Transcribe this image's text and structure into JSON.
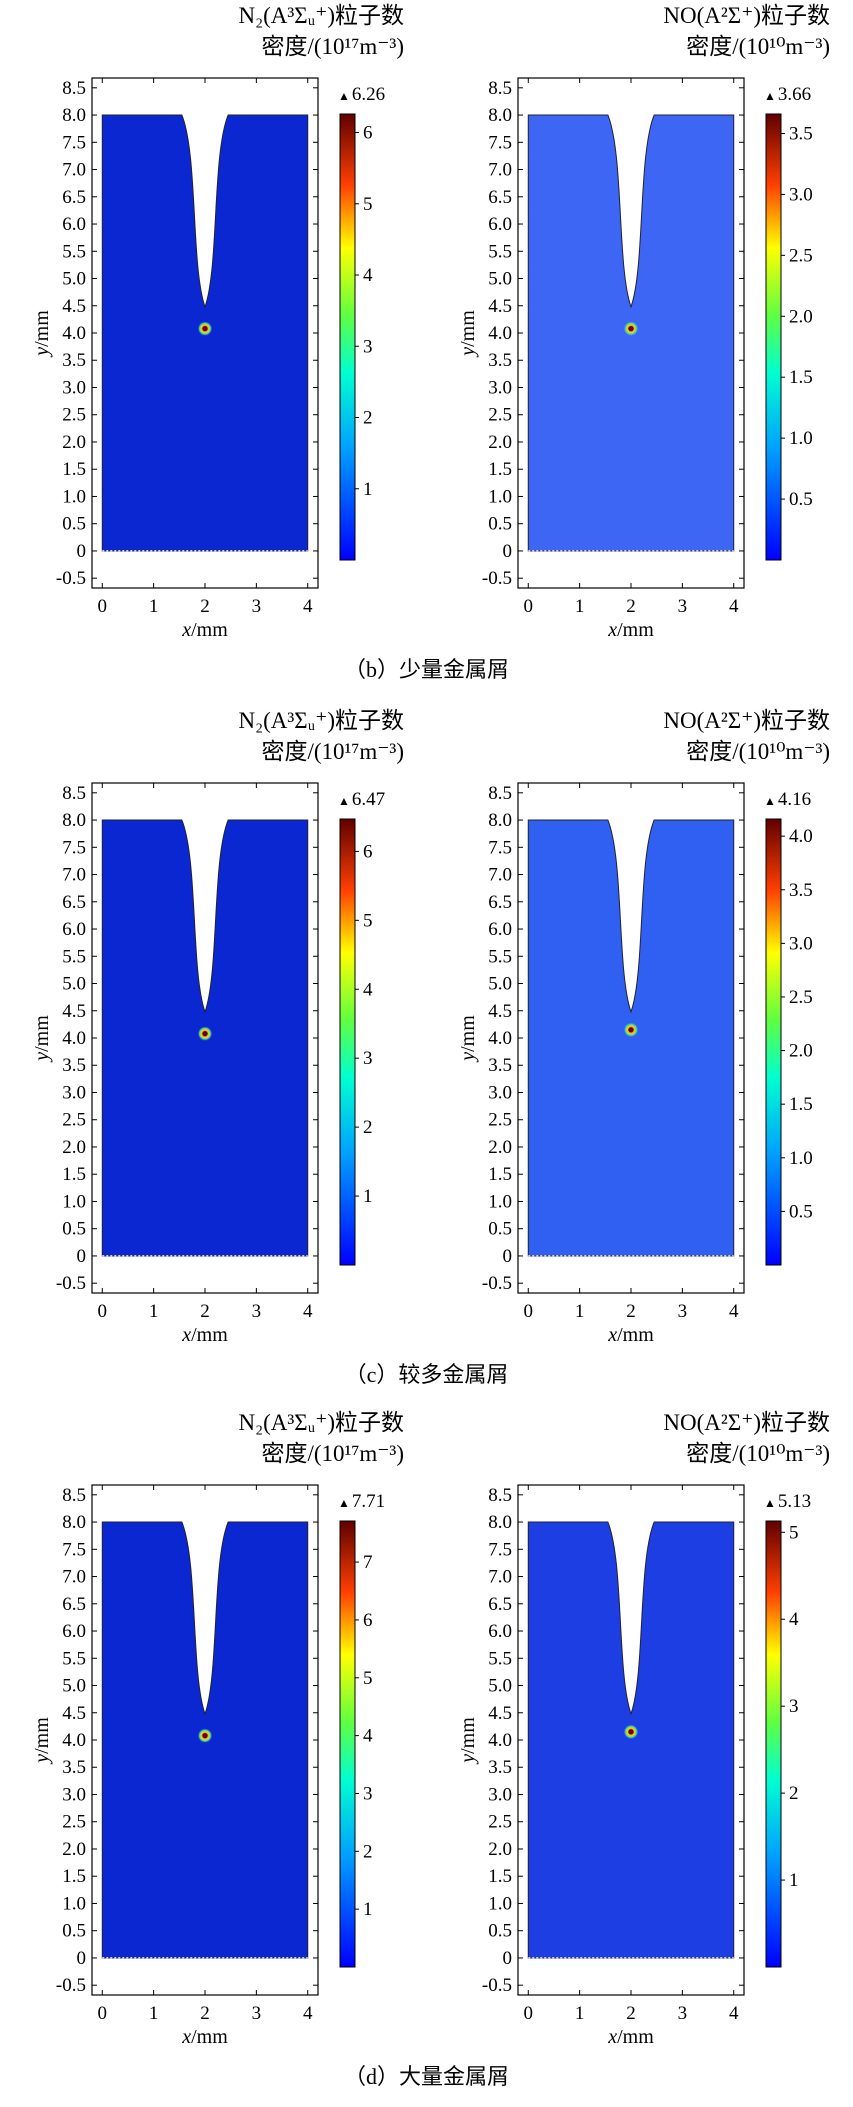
{
  "rows": [
    {
      "caption": "（b）少量金属屑",
      "panels": [
        {
          "title_line1": "N₂(A³Σᵤ⁺)粒子数",
          "title_line2": "密度/(10¹⁷m⁻³)",
          "max_label": "6.26",
          "cbar_ticks": [
            "1",
            "2",
            "3",
            "4",
            "5",
            "6"
          ],
          "background_color": "#0a27d1",
          "hotspot": {
            "x": 2.0,
            "y": 4.08,
            "peak": 6.26
          }
        },
        {
          "title_line1": "NO(A²Σ⁺)粒子数",
          "title_line2": "密度/(10¹⁰m⁻³)",
          "max_label": "3.66",
          "cbar_ticks": [
            "0.5",
            "1.0",
            "1.5",
            "2.0",
            "2.5",
            "3.0",
            "3.5"
          ],
          "background_color": "#3d66f4",
          "hotspot": {
            "x": 2.0,
            "y": 4.08,
            "peak": 3.66
          }
        }
      ]
    },
    {
      "caption": "（c）较多金属屑",
      "panels": [
        {
          "title_line1": "N₂(A³Σᵤ⁺)粒子数",
          "title_line2": "密度/(10¹⁷m⁻³)",
          "max_label": "6.47",
          "cbar_ticks": [
            "1",
            "2",
            "3",
            "4",
            "5",
            "6"
          ],
          "background_color": "#0a27d1",
          "hotspot": {
            "x": 2.0,
            "y": 4.08,
            "peak": 6.47
          }
        },
        {
          "title_line1": "NO(A²Σ⁺)粒子数",
          "title_line2": "密度/(10¹⁰m⁻³)",
          "max_label": "4.16",
          "cbar_ticks": [
            "0.5",
            "1.0",
            "1.5",
            "2.0",
            "2.5",
            "3.0",
            "3.5",
            "4.0"
          ],
          "background_color": "#3060f2",
          "hotspot": {
            "x": 2.0,
            "y": 4.15,
            "peak": 4.16
          }
        }
      ]
    },
    {
      "caption": "（d）大量金属屑",
      "panels": [
        {
          "title_line1": "N₂(A³Σᵤ⁺)粒子数",
          "title_line2": "密度/(10¹⁷m⁻³)",
          "max_label": "7.71",
          "cbar_ticks": [
            "1",
            "2",
            "3",
            "4",
            "5",
            "6",
            "7"
          ],
          "background_color": "#0a27d1",
          "hotspot": {
            "x": 2.0,
            "y": 4.08,
            "peak": 7.71
          }
        },
        {
          "title_line1": "NO(A²Σ⁺)粒子数",
          "title_line2": "密度/(10¹⁰m⁻³)",
          "max_label": "5.13",
          "cbar_ticks": [
            "1",
            "2",
            "3",
            "4",
            "5"
          ],
          "background_color": "#1d3ee3",
          "hotspot": {
            "x": 2.0,
            "y": 4.15,
            "peak": 5.13
          }
        }
      ]
    }
  ],
  "axes": {
    "xlabel_var": "x",
    "xlabel_unit": "/mm",
    "ylabel_var": "y",
    "ylabel_unit": "/mm",
    "x_ticks": [
      "0",
      "1",
      "2",
      "3",
      "4"
    ],
    "y_ticks": [
      "-0.5",
      "0",
      "0.5",
      "1.0",
      "1.5",
      "2.0",
      "2.5",
      "3.0",
      "3.5",
      "4.0",
      "4.5",
      "5.0",
      "5.5",
      "6.0",
      "6.5",
      "7.0",
      "7.5",
      "8.0",
      "8.5"
    ]
  },
  "chart_data": [
    {
      "type": "heatmap",
      "title": "N₂(A³Σᵤ⁺)粒子数密度/(10¹⁷m⁻³)",
      "subplot": "（b）少量金属屑",
      "xlabel": "x/mm",
      "ylabel": "y/mm",
      "xlim": [
        0,
        4
      ],
      "ylim": [
        -0.5,
        8.5
      ],
      "colorbar_max": 6.26,
      "colorbar_ticks": [
        1,
        2,
        3,
        4,
        5,
        6
      ],
      "hotspot": {
        "x": 2.0,
        "y": 4.08
      }
    },
    {
      "type": "heatmap",
      "title": "NO(A²Σ⁺)粒子数密度/(10¹⁰m⁻³)",
      "subplot": "（b）少量金属屑",
      "xlabel": "x/mm",
      "ylabel": "y/mm",
      "xlim": [
        0,
        4
      ],
      "ylim": [
        -0.5,
        8.5
      ],
      "colorbar_max": 3.66,
      "colorbar_ticks": [
        0.5,
        1.0,
        1.5,
        2.0,
        2.5,
        3.0,
        3.5
      ],
      "hotspot": {
        "x": 2.0,
        "y": 4.08
      }
    },
    {
      "type": "heatmap",
      "title": "N₂(A³Σᵤ⁺)粒子数密度/(10¹⁷m⁻³)",
      "subplot": "（c）较多金属屑",
      "xlabel": "x/mm",
      "ylabel": "y/mm",
      "xlim": [
        0,
        4
      ],
      "ylim": [
        -0.5,
        8.5
      ],
      "colorbar_max": 6.47,
      "colorbar_ticks": [
        1,
        2,
        3,
        4,
        5,
        6
      ],
      "hotspot": {
        "x": 2.0,
        "y": 4.08
      }
    },
    {
      "type": "heatmap",
      "title": "NO(A²Σ⁺)粒子数密度/(10¹⁰m⁻³)",
      "subplot": "（c）较多金属屑",
      "xlabel": "x/mm",
      "ylabel": "y/mm",
      "xlim": [
        0,
        4
      ],
      "ylim": [
        -0.5,
        8.5
      ],
      "colorbar_max": 4.16,
      "colorbar_ticks": [
        0.5,
        1.0,
        1.5,
        2.0,
        2.5,
        3.0,
        3.5,
        4.0
      ],
      "hotspot": {
        "x": 2.0,
        "y": 4.15
      }
    },
    {
      "type": "heatmap",
      "title": "N₂(A³Σᵤ⁺)粒子数密度/(10¹⁷m⁻³)",
      "subplot": "（d）大量金属屑",
      "xlabel": "x/mm",
      "ylabel": "y/mm",
      "xlim": [
        0,
        4
      ],
      "ylim": [
        -0.5,
        8.5
      ],
      "colorbar_max": 7.71,
      "colorbar_ticks": [
        1,
        2,
        3,
        4,
        5,
        6,
        7
      ],
      "hotspot": {
        "x": 2.0,
        "y": 4.08
      }
    },
    {
      "type": "heatmap",
      "title": "NO(A²Σ⁺)粒子数密度/(10¹⁰m⁻³)",
      "subplot": "（d）大量金属屑",
      "xlabel": "x/mm",
      "ylabel": "y/mm",
      "xlim": [
        0,
        4
      ],
      "ylim": [
        -0.5,
        8.5
      ],
      "colorbar_max": 5.13,
      "colorbar_ticks": [
        1,
        2,
        3,
        4,
        5
      ],
      "hotspot": {
        "x": 2.0,
        "y": 4.15
      }
    }
  ]
}
